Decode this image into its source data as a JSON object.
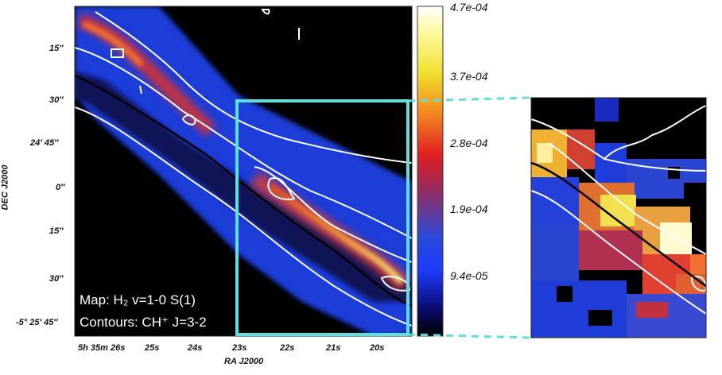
{
  "figure": {
    "map_title": "Map: H₂ v=1-0 S(1)",
    "contour_title": "Contours: CH⁺ J=3-2",
    "xlabel": "RA J2000",
    "ylabel": "DEC J2000",
    "ra_ticks": [
      "5h 35m 26s",
      "25s",
      "24s",
      "23s",
      "22s",
      "21s",
      "20s"
    ],
    "dec_ticks": [
      "15″",
      "30″",
      "24′ 45″",
      "0″",
      "15″",
      "30″",
      "-5° 25′ 45″"
    ],
    "colorbar_ticks": [
      "4.7e-04",
      "3.7e-04",
      "2.8e-04",
      "1.9e-04",
      "9.4e-05"
    ],
    "colors": {
      "zoom_box": "#5fe0e0",
      "contour": "#ffffff",
      "inner_contour": "#000000"
    }
  }
}
